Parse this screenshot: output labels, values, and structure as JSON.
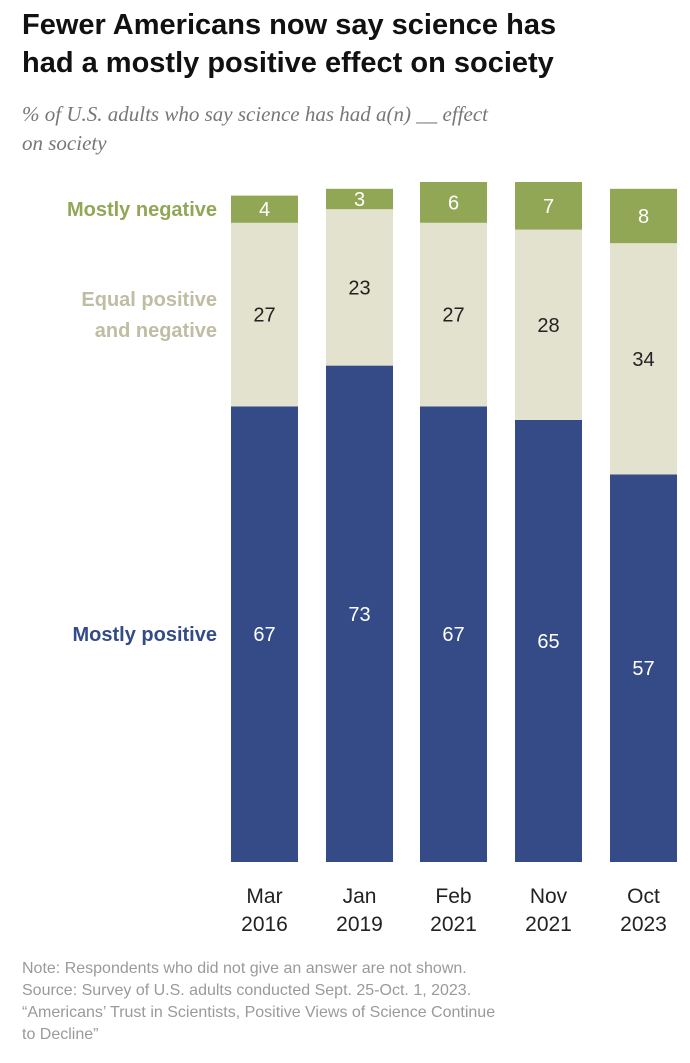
{
  "header": {
    "title_line1": "Fewer Americans now say science has",
    "title_line2": "had a mostly positive effect on society",
    "subtitle_line1": "% of U.S. adults who say science has had a(n) __ effect",
    "subtitle_line2": "on society"
  },
  "chart_data": {
    "type": "bar",
    "stacked": true,
    "orientation": "vertical",
    "categories": [
      "Mar 2016",
      "Jan 2019",
      "Feb 2021",
      "Nov 2021",
      "Oct 2023"
    ],
    "category_lines": [
      [
        "Mar",
        "2016"
      ],
      [
        "Jan",
        "2019"
      ],
      [
        "Feb",
        "2021"
      ],
      [
        "Nov",
        "2021"
      ],
      [
        "Oct",
        "2023"
      ]
    ],
    "series": [
      {
        "name": "Mostly positive",
        "values": [
          67,
          73,
          67,
          65,
          57
        ],
        "color": "#344b87",
        "label_color": "#ffffff",
        "legend_lines": [
          "Mostly positive"
        ]
      },
      {
        "name": "Equal positive and negative",
        "values": [
          27,
          23,
          27,
          28,
          34
        ],
        "color": "#e3e2cf",
        "label_color": "#222222",
        "legend_lines": [
          "Equal positive",
          "and negative"
        ]
      },
      {
        "name": "Mostly negative",
        "values": [
          4,
          3,
          6,
          7,
          8
        ],
        "color": "#91a756",
        "label_color": "#ffffff",
        "legend_lines": [
          "Mostly negative"
        ]
      }
    ],
    "ylim": [
      0,
      100
    ],
    "grid": false,
    "legend": "left",
    "title": "",
    "xlabel": "",
    "ylabel": ""
  },
  "footer": {
    "note_line1": "Note: Respondents who did not give an answer are not shown.",
    "note_line2": "Source: Survey of U.S. adults conducted Sept. 25-Oct. 1, 2023.",
    "note_line3": "“Americans’ Trust in Scientists, Positive Views of Science Continue",
    "note_line4": "to Decline”"
  }
}
